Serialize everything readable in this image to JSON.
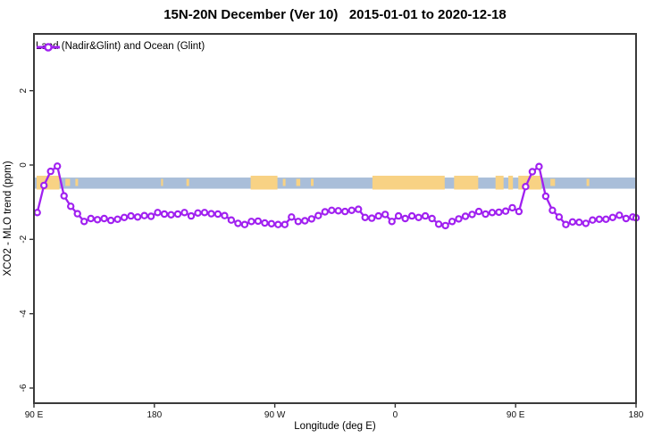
{
  "title": "15N-20N December (Ver 10)   2015-01-01 to 2020-12-18",
  "legend": {
    "label": "Land (Nadir&Glint) and Ocean (Glint)",
    "marker": "open-circle",
    "color": "#A020F0"
  },
  "chart_data": {
    "type": "line",
    "title": "15N-20N December (Ver 10)   2015-01-01 to 2020-12-18",
    "xlabel": "Longitude (deg E)",
    "ylabel": "XCO2 - MLO trend (ppm)",
    "grid": "off",
    "legend_position": "top-left-inside",
    "x_axis": {
      "description": "longitude, wrapping eastward from 90E through 180, 90W, 0, 90E to 180 (450 degrees total)",
      "span_deg": 450,
      "ticks": [
        {
          "t": 0,
          "label": "90 E"
        },
        {
          "t": 90,
          "label": "180"
        },
        {
          "t": 180,
          "label": "90 W"
        },
        {
          "t": 270,
          "label": "0"
        },
        {
          "t": 360,
          "label": "90 E"
        },
        {
          "t": 450,
          "label": "180"
        }
      ]
    },
    "y_axis": {
      "min": -6.4,
      "max": 3.5,
      "ticks": [
        {
          "v": 2,
          "label": "2"
        },
        {
          "v": 0,
          "label": "0"
        },
        {
          "v": -2,
          "label": "-2"
        },
        {
          "v": -4,
          "label": "-4"
        },
        {
          "v": -6,
          "label": "-6"
        }
      ]
    },
    "series": [
      {
        "name": "Land (Nadir&Glint) and Ocean (Glint)",
        "color": "#A020F0",
        "marker": "open-circle",
        "x_deg_east_of_90E": [
          2.5,
          7.5,
          12.5,
          17.5,
          22.5,
          27.5,
          32.5,
          37.5,
          42.5,
          47.5,
          52.5,
          57.5,
          62.5,
          67.5,
          72.5,
          77.5,
          82.5,
          87.5,
          92.5,
          97.5,
          102.5,
          107.5,
          112.5,
          117.5,
          122.5,
          127.5,
          132.5,
          137.5,
          142.5,
          147.5,
          152.5,
          157.5,
          162.5,
          167.5,
          172.5,
          177.5,
          182.5,
          187.5,
          192.5,
          197.5,
          202.5,
          207.5,
          212.5,
          217.5,
          222.5,
          227.5,
          232.5,
          237.5,
          242.5,
          247.5,
          252.5,
          257.5,
          262.5,
          267.5,
          272.5,
          277.5,
          282.5,
          287.5,
          292.5,
          297.5,
          302.5,
          307.5,
          312.5,
          317.5,
          322.5,
          327.5,
          332.5,
          337.5,
          342.5,
          347.5,
          352.5,
          357.5,
          362.5,
          367.5,
          372.5,
          377.5,
          382.5,
          387.5,
          392.5,
          397.5,
          402.5,
          407.5,
          412.5,
          417.5,
          422.5,
          427.5,
          432.5,
          437.5,
          442.5,
          447.5,
          450
        ],
        "y_ppm": [
          -1.28,
          -0.55,
          -0.17,
          -0.03,
          -0.83,
          -1.11,
          -1.31,
          -1.52,
          -1.44,
          -1.47,
          -1.44,
          -1.49,
          -1.46,
          -1.41,
          -1.37,
          -1.4,
          -1.36,
          -1.38,
          -1.28,
          -1.32,
          -1.34,
          -1.32,
          -1.28,
          -1.37,
          -1.29,
          -1.28,
          -1.31,
          -1.32,
          -1.36,
          -1.48,
          -1.57,
          -1.6,
          -1.52,
          -1.51,
          -1.56,
          -1.58,
          -1.6,
          -1.6,
          -1.4,
          -1.52,
          -1.5,
          -1.45,
          -1.36,
          -1.26,
          -1.22,
          -1.23,
          -1.25,
          -1.22,
          -1.19,
          -1.41,
          -1.43,
          -1.37,
          -1.33,
          -1.52,
          -1.37,
          -1.44,
          -1.37,
          -1.41,
          -1.37,
          -1.44,
          -1.59,
          -1.63,
          -1.52,
          -1.45,
          -1.38,
          -1.33,
          -1.25,
          -1.32,
          -1.28,
          -1.27,
          -1.24,
          -1.15,
          -1.25,
          -0.58,
          -0.18,
          -0.04,
          -0.84,
          -1.22,
          -1.4,
          -1.6,
          -1.53,
          -1.54,
          -1.57,
          -1.48,
          -1.46,
          -1.46,
          -1.41,
          -1.35,
          -1.44,
          -1.4,
          -1.42
        ]
      }
    ],
    "map_band": {
      "description": "15N-20N latitude strip map drawn across the plot near y=-0.5: ocean blue with yellow land segments",
      "ocean_color": "#A9BED9",
      "land_color": "#F8D284",
      "y_top_ppm": -0.33,
      "y_bottom_ppm": -0.63,
      "land_segments_deg": [
        [
          2,
          19
        ],
        [
          162,
          182
        ],
        [
          253,
          307
        ],
        [
          314,
          332
        ],
        [
          345,
          351
        ],
        [
          354.5,
          358
        ],
        [
          362,
          379
        ]
      ],
      "land_dots_deg": [
        [
          23.5,
          27
        ],
        [
          31,
          33
        ],
        [
          95,
          96.5
        ],
        [
          114,
          116
        ],
        [
          186,
          188
        ],
        [
          196,
          199
        ],
        [
          207,
          209
        ],
        [
          386,
          389.5
        ],
        [
          413,
          415
        ]
      ]
    }
  }
}
